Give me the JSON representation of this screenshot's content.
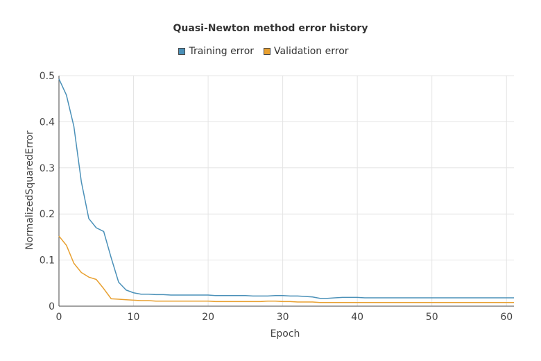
{
  "chart_data": {
    "type": "line",
    "title": "Quasi-Newton method error history",
    "xlabel": "Epoch",
    "ylabel": "NormalizedSquaredError",
    "xlim": [
      0,
      61
    ],
    "ylim": [
      0,
      0.5
    ],
    "grid": true,
    "legend_position": "top-center",
    "x_ticks": [
      "0",
      "10",
      "20",
      "30",
      "40",
      "50",
      "60"
    ],
    "y_ticks": [
      "0",
      "0.1",
      "0.2",
      "0.3",
      "0.4",
      "0.5"
    ],
    "x": [
      0,
      1,
      2,
      3,
      4,
      5,
      6,
      7,
      8,
      9,
      10,
      11,
      12,
      13,
      14,
      15,
      16,
      17,
      18,
      19,
      20,
      21,
      22,
      23,
      24,
      25,
      26,
      27,
      28,
      29,
      30,
      31,
      32,
      33,
      34,
      35,
      36,
      37,
      38,
      39,
      40,
      41,
      42,
      43,
      44,
      45,
      46,
      47,
      48,
      49,
      50,
      51,
      52,
      53,
      54,
      55,
      56,
      57,
      58,
      59,
      60,
      61
    ],
    "series": [
      {
        "name": "Training error",
        "color": "#4a90b8",
        "values": [
          0.493,
          0.458,
          0.39,
          0.27,
          0.19,
          0.17,
          0.162,
          0.105,
          0.052,
          0.035,
          0.029,
          0.026,
          0.026,
          0.025,
          0.025,
          0.024,
          0.024,
          0.024,
          0.024,
          0.024,
          0.024,
          0.023,
          0.023,
          0.023,
          0.023,
          0.023,
          0.022,
          0.022,
          0.022,
          0.023,
          0.023,
          0.022,
          0.022,
          0.021,
          0.02,
          0.017,
          0.017,
          0.018,
          0.019,
          0.019,
          0.019,
          0.018,
          0.018,
          0.018,
          0.018,
          0.018,
          0.018,
          0.018,
          0.018,
          0.018,
          0.018,
          0.018,
          0.018,
          0.018,
          0.018,
          0.018,
          0.018,
          0.018,
          0.018,
          0.018,
          0.018,
          0.018
        ]
      },
      {
        "name": "Validation error",
        "color": "#e8a030",
        "values": [
          0.152,
          0.132,
          0.093,
          0.073,
          0.063,
          0.058,
          0.038,
          0.016,
          0.015,
          0.014,
          0.013,
          0.012,
          0.012,
          0.011,
          0.011,
          0.011,
          0.011,
          0.011,
          0.011,
          0.011,
          0.011,
          0.01,
          0.01,
          0.01,
          0.01,
          0.01,
          0.01,
          0.01,
          0.011,
          0.011,
          0.01,
          0.01,
          0.009,
          0.009,
          0.009,
          0.008,
          0.008,
          0.008,
          0.008,
          0.008,
          0.008,
          0.008,
          0.008,
          0.008,
          0.008,
          0.008,
          0.008,
          0.008,
          0.008,
          0.008,
          0.008,
          0.008,
          0.008,
          0.008,
          0.008,
          0.008,
          0.008,
          0.008,
          0.008,
          0.008,
          0.008,
          0.008
        ]
      }
    ]
  }
}
